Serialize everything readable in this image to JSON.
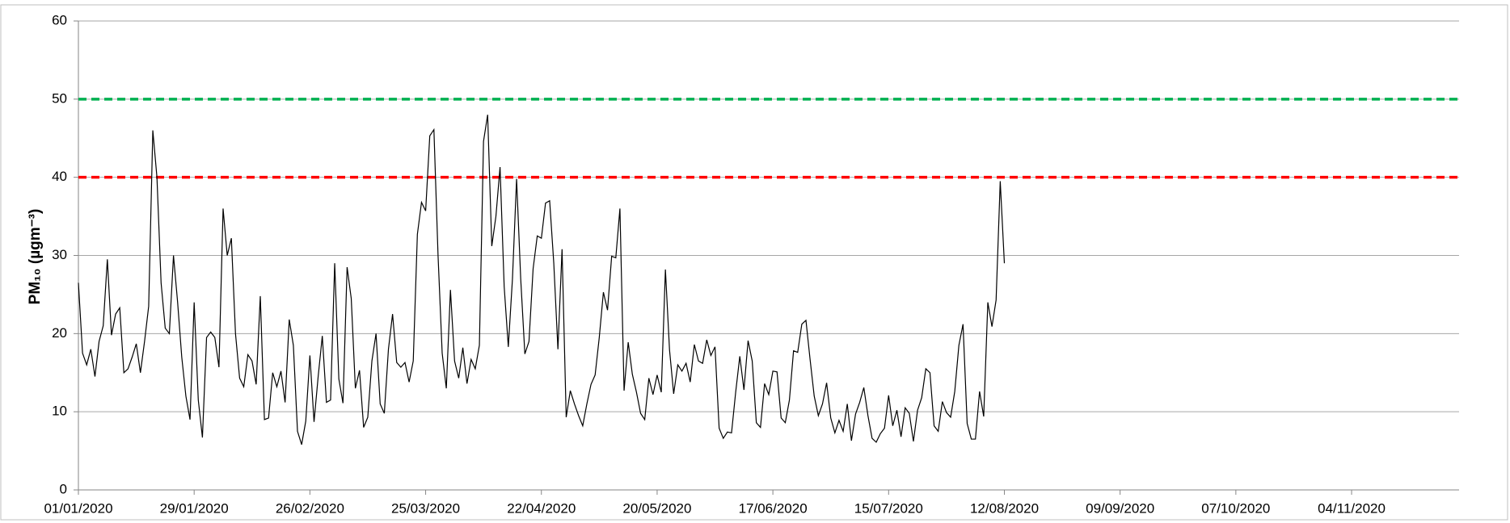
{
  "chart_data": {
    "type": "line",
    "ylabel": "PM₁₀ (µgm⁻³)",
    "x": [
      "01/01/2020",
      "02/01/2020",
      "03/01/2020",
      "04/01/2020",
      "05/01/2020",
      "06/01/2020",
      "07/01/2020",
      "08/01/2020",
      "09/01/2020",
      "10/01/2020",
      "11/01/2020",
      "12/01/2020",
      "13/01/2020",
      "14/01/2020",
      "15/01/2020",
      "16/01/2020",
      "17/01/2020",
      "18/01/2020",
      "19/01/2020",
      "20/01/2020",
      "21/01/2020",
      "22/01/2020",
      "23/01/2020",
      "24/01/2020",
      "25/01/2020",
      "26/01/2020",
      "27/01/2020",
      "28/01/2020",
      "29/01/2020",
      "30/01/2020",
      "31/01/2020",
      "01/02/2020",
      "02/02/2020",
      "03/02/2020",
      "04/02/2020",
      "05/02/2020",
      "06/02/2020",
      "07/02/2020",
      "08/02/2020",
      "09/02/2020",
      "10/02/2020",
      "11/02/2020",
      "12/02/2020",
      "13/02/2020",
      "14/02/2020",
      "15/02/2020",
      "16/02/2020",
      "17/02/2020",
      "18/02/2020",
      "19/02/2020",
      "20/02/2020",
      "21/02/2020",
      "22/02/2020",
      "23/02/2020",
      "24/02/2020",
      "25/02/2020",
      "26/02/2020",
      "27/02/2020",
      "28/02/2020",
      "29/02/2020",
      "01/03/2020",
      "02/03/2020",
      "03/03/2020",
      "04/03/2020",
      "05/03/2020",
      "06/03/2020",
      "07/03/2020",
      "08/03/2020",
      "09/03/2020",
      "10/03/2020",
      "11/03/2020",
      "12/03/2020",
      "13/03/2020",
      "14/03/2020",
      "15/03/2020",
      "16/03/2020",
      "17/03/2020",
      "18/03/2020",
      "19/03/2020",
      "20/03/2020",
      "21/03/2020",
      "22/03/2020",
      "23/03/2020",
      "24/03/2020",
      "25/03/2020",
      "26/03/2020",
      "27/03/2020",
      "28/03/2020",
      "29/03/2020",
      "30/03/2020",
      "31/03/2020",
      "01/04/2020",
      "02/04/2020",
      "03/04/2020",
      "04/04/2020",
      "05/04/2020",
      "06/04/2020",
      "07/04/2020",
      "08/04/2020",
      "09/04/2020",
      "10/04/2020",
      "11/04/2020",
      "12/04/2020",
      "13/04/2020",
      "14/04/2020",
      "15/04/2020",
      "16/04/2020",
      "17/04/2020",
      "18/04/2020",
      "19/04/2020",
      "20/04/2020",
      "21/04/2020",
      "22/04/2020",
      "23/04/2020",
      "24/04/2020",
      "25/04/2020",
      "26/04/2020",
      "27/04/2020",
      "28/04/2020",
      "29/04/2020",
      "30/04/2020",
      "01/05/2020",
      "02/05/2020",
      "03/05/2020",
      "04/05/2020",
      "05/05/2020",
      "06/05/2020",
      "07/05/2020",
      "08/05/2020",
      "09/05/2020",
      "10/05/2020",
      "11/05/2020",
      "12/05/2020",
      "13/05/2020",
      "14/05/2020",
      "15/05/2020",
      "16/05/2020",
      "17/05/2020",
      "18/05/2020",
      "19/05/2020",
      "20/05/2020",
      "21/05/2020",
      "22/05/2020",
      "23/05/2020",
      "24/05/2020",
      "25/05/2020",
      "26/05/2020",
      "27/05/2020",
      "28/05/2020",
      "29/05/2020",
      "30/05/2020",
      "31/05/2020",
      "01/06/2020",
      "02/06/2020",
      "03/06/2020",
      "04/06/2020",
      "05/06/2020",
      "06/06/2020",
      "07/06/2020",
      "08/06/2020",
      "09/06/2020",
      "10/06/2020",
      "11/06/2020",
      "12/06/2020",
      "13/06/2020",
      "14/06/2020",
      "15/06/2020",
      "16/06/2020",
      "17/06/2020",
      "18/06/2020",
      "19/06/2020",
      "20/06/2020",
      "21/06/2020",
      "22/06/2020",
      "23/06/2020",
      "24/06/2020",
      "25/06/2020",
      "26/06/2020",
      "27/06/2020",
      "28/06/2020",
      "29/06/2020",
      "30/06/2020",
      "01/07/2020",
      "02/07/2020",
      "03/07/2020",
      "04/07/2020",
      "05/07/2020",
      "06/07/2020",
      "07/07/2020",
      "08/07/2020",
      "09/07/2020",
      "10/07/2020",
      "11/07/2020",
      "12/07/2020",
      "13/07/2020",
      "14/07/2020",
      "15/07/2020",
      "16/07/2020",
      "17/07/2020",
      "18/07/2020",
      "19/07/2020",
      "20/07/2020",
      "21/07/2020",
      "22/07/2020",
      "23/07/2020",
      "24/07/2020",
      "25/07/2020",
      "26/07/2020",
      "27/07/2020",
      "28/07/2020",
      "29/07/2020",
      "30/07/2020",
      "31/07/2020",
      "01/08/2020",
      "02/08/2020",
      "03/08/2020",
      "04/08/2020",
      "05/08/2020",
      "06/08/2020",
      "07/08/2020",
      "08/08/2020",
      "09/08/2020",
      "10/08/2020",
      "11/08/2020",
      "12/08/2020"
    ],
    "series": [
      {
        "color": "#000000",
        "values": [
          26.5,
          17.5,
          16,
          18,
          14.5,
          19,
          21,
          29.5,
          19.8,
          22.5,
          23.3,
          15,
          15.5,
          17,
          18.7,
          15,
          19,
          23.5,
          46,
          40,
          26.5,
          20.7,
          20,
          30,
          24,
          17,
          12,
          9,
          24,
          11.5,
          6.7,
          19.5,
          20.2,
          19.5,
          15.7,
          36,
          30,
          32.2,
          20,
          14.3,
          13.2,
          17.3,
          16.5,
          13.5,
          24.8,
          9,
          9.2,
          15,
          13.2,
          15.2,
          11.2,
          21.8,
          18.5,
          7.5,
          5.8,
          8.8,
          17.2,
          8.7,
          14.5,
          19.7,
          11.2,
          11.5,
          29,
          14.2,
          11.1,
          28.5,
          24.5,
          13,
          15.3,
          8,
          9.3,
          16.5,
          20,
          11,
          9.8,
          18,
          22.5,
          16.3,
          15.7,
          16.3,
          13.8,
          16.5,
          32.7,
          36.8,
          35.7,
          45.3,
          46.1,
          30,
          17.5,
          13,
          25.6,
          16.5,
          14.3,
          18.2,
          13.6,
          16.7,
          15.5,
          18.5,
          44.6,
          48,
          31.2,
          35,
          41.3,
          26,
          18.3,
          27,
          39.8,
          27,
          17.4,
          19,
          28.3,
          32.5,
          32.2,
          36.7,
          37,
          29,
          18,
          30.8,
          9.3,
          12.7,
          11,
          9.5,
          8.2,
          11,
          13.5,
          14.7,
          19.5,
          25.3,
          23,
          29.9,
          29.7,
          36,
          12.7,
          18.9,
          14.8,
          12.5,
          9.8,
          9,
          14.3,
          12.2,
          14.7,
          12.5,
          28.2,
          17.9,
          12.3,
          16,
          15.2,
          16.2,
          13.8,
          18.6,
          16.5,
          16.2,
          19.2,
          17.2,
          18.3,
          7.9,
          6.6,
          7.4,
          7.3,
          12.5,
          17.1,
          12.8,
          19.1,
          16.5,
          8.6,
          8,
          13.6,
          12.2,
          15.2,
          15.1,
          9.2,
          8.6,
          11.5,
          17.8,
          17.6,
          21.2,
          21.7,
          16.7,
          12,
          9.5,
          11,
          13.7,
          9.2,
          7.3,
          8.9,
          7.5,
          11,
          6.3,
          9.7,
          11.2,
          13.1,
          9.5,
          6.6,
          6.1,
          7.2,
          7.9,
          12.1,
          8.2,
          10.2,
          6.8,
          10.5,
          9.8,
          6.2,
          10.2,
          11.8,
          15.5,
          15,
          8.2,
          7.5,
          11.3,
          9.9,
          9.3,
          12.6,
          18.5,
          21.2,
          8.5,
          6.5,
          6.5,
          12.6,
          9.4,
          24,
          20.9,
          24.3,
          39.5,
          29
        ]
      }
    ],
    "reference_lines": [
      {
        "value": 40,
        "color": "#ff0000"
      },
      {
        "value": 50,
        "color": "#00b050"
      }
    ],
    "xlim": [
      "01/01/2020",
      "30/11/2020"
    ],
    "xticks": [
      "01/01/2020",
      "29/01/2020",
      "26/02/2020",
      "25/03/2020",
      "22/04/2020",
      "20/05/2020",
      "17/06/2020",
      "15/07/2020",
      "12/08/2020",
      "09/09/2020",
      "07/10/2020",
      "04/11/2020"
    ],
    "ylim": [
      0,
      60
    ],
    "yticks": [
      0,
      10,
      20,
      30,
      40,
      50,
      60
    ],
    "grid": true
  }
}
